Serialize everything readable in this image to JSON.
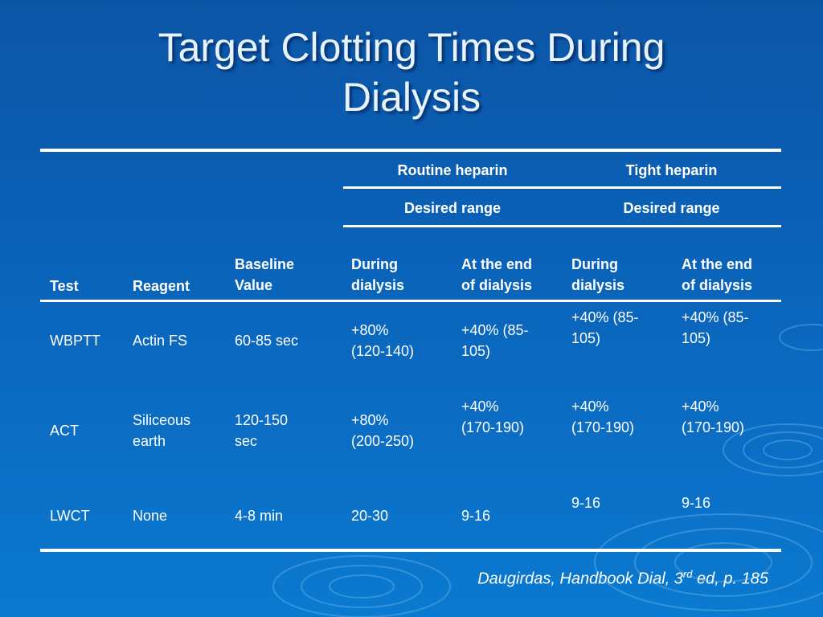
{
  "slide": {
    "title_line1": "Target Clotting Times During",
    "title_line2": "Dialysis"
  },
  "table": {
    "group_headers": {
      "routine": "Routine heparin",
      "tight": "Tight heparin"
    },
    "sub_headers": {
      "routine": "Desired range",
      "tight": "Desired range"
    },
    "columns": {
      "test": "Test",
      "reagent": "Reagent",
      "baseline_1": "Baseline",
      "baseline_2": "Value",
      "routine_during_1": "During",
      "routine_during_2": "dialysis",
      "routine_end_1": "At the end",
      "routine_end_2": "of dialysis",
      "tight_during_1": "During",
      "tight_during_2": "dialysis",
      "tight_end_1": "At the end",
      "tight_end_2": "of dialysis"
    },
    "rows": [
      {
        "test": "WBPTT",
        "reagent_1": "Actin FS",
        "reagent_2": "",
        "baseline_1": "60-85 sec",
        "baseline_2": "",
        "routine_during_1": "+80%",
        "routine_during_2": "(120-140)",
        "routine_end_1": "+40% (85-",
        "routine_end_2": "105)",
        "tight_during_1": "+40% (85-",
        "tight_during_2": "105)",
        "tight_end_1": "+40% (85-",
        "tight_end_2": "105)"
      },
      {
        "test": "ACT",
        "reagent_1": "Siliceous",
        "reagent_2": "earth",
        "baseline_1": "120-150",
        "baseline_2": "sec",
        "routine_during_1": "+80%",
        "routine_during_2": "(200-250)",
        "routine_end_1": "+40%",
        "routine_end_2": "(170-190)",
        "tight_during_1": "+40%",
        "tight_during_2": "(170-190)",
        "tight_end_1": "+40%",
        "tight_end_2": "(170-190)"
      },
      {
        "test": "LWCT",
        "reagent_1": "None",
        "reagent_2": "",
        "baseline_1": "4-8 min",
        "baseline_2": "",
        "routine_during_1": "20-30",
        "routine_during_2": "",
        "routine_end_1": "9-16",
        "routine_end_2": "",
        "tight_during_1": "9-16",
        "tight_during_2": "",
        "tight_end_1": "9-16",
        "tight_end_2": ""
      }
    ]
  },
  "citation": {
    "before": "Daugirdas, Handbook Dial, 3",
    "superscript": "rd",
    "after": " ed, p. 185"
  },
  "colors": {
    "background": "#0a62b8",
    "text": "#ffffff",
    "rules": "#ffffff"
  }
}
